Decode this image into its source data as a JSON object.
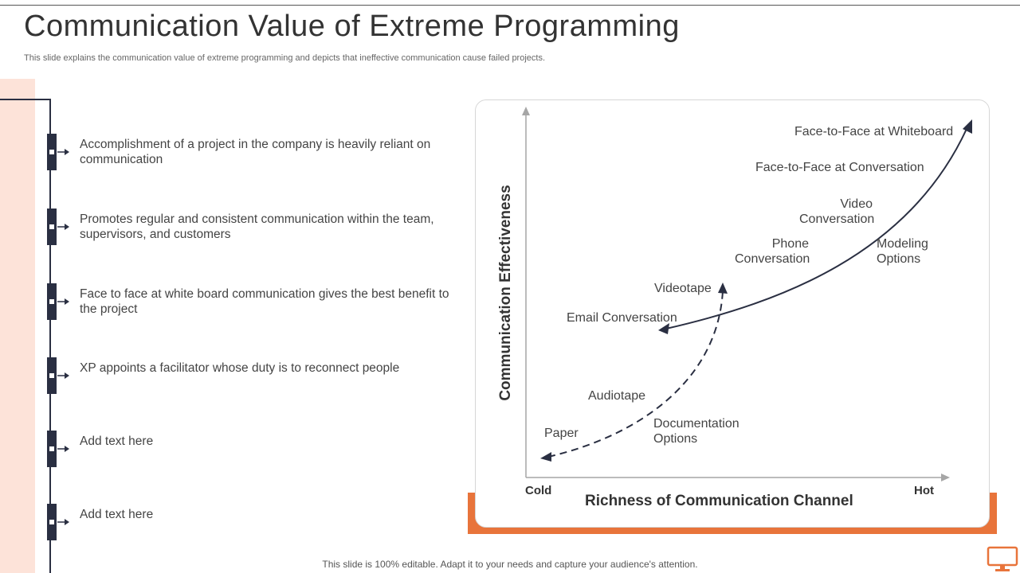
{
  "title": "Communication Value of Extreme Programming",
  "subtitle": "This slide explains the communication value of extreme programming and depicts that ineffective communication cause failed projects.",
  "points": [
    "Accomplishment of a project in the company is heavily reliant on communication",
    "Promotes regular and consistent communication within the team, supervisors, and customers",
    "Face to face at white board communication gives the best benefit to the project",
    "XP appoints a facilitator whose duty is to reconnect people",
    "Add text here",
    "Add text here"
  ],
  "chart": {
    "x_axis_title": "Richness of Communication Channel",
    "y_axis_title": "Communication Effectiveness",
    "x_min_label": "Cold",
    "x_max_label": "Hot",
    "modeling_options": {
      "label": "Modeling Options",
      "items": [
        "Email Conversation",
        "Videotape",
        "Phone Conversation",
        "Video Conversation",
        "Face-to-Face at Conversation",
        "Face-to-Face at Whiteboard"
      ]
    },
    "documentation_options": {
      "label": "Documentation Options",
      "items": [
        "Paper",
        "Audiotape"
      ]
    }
  },
  "footer": "This slide is 100% editable. Adapt it to your needs and capture your audience's attention.",
  "colors": {
    "accent": "#e8743b",
    "dark": "#2a2f42",
    "peach": "#fde3d9"
  }
}
